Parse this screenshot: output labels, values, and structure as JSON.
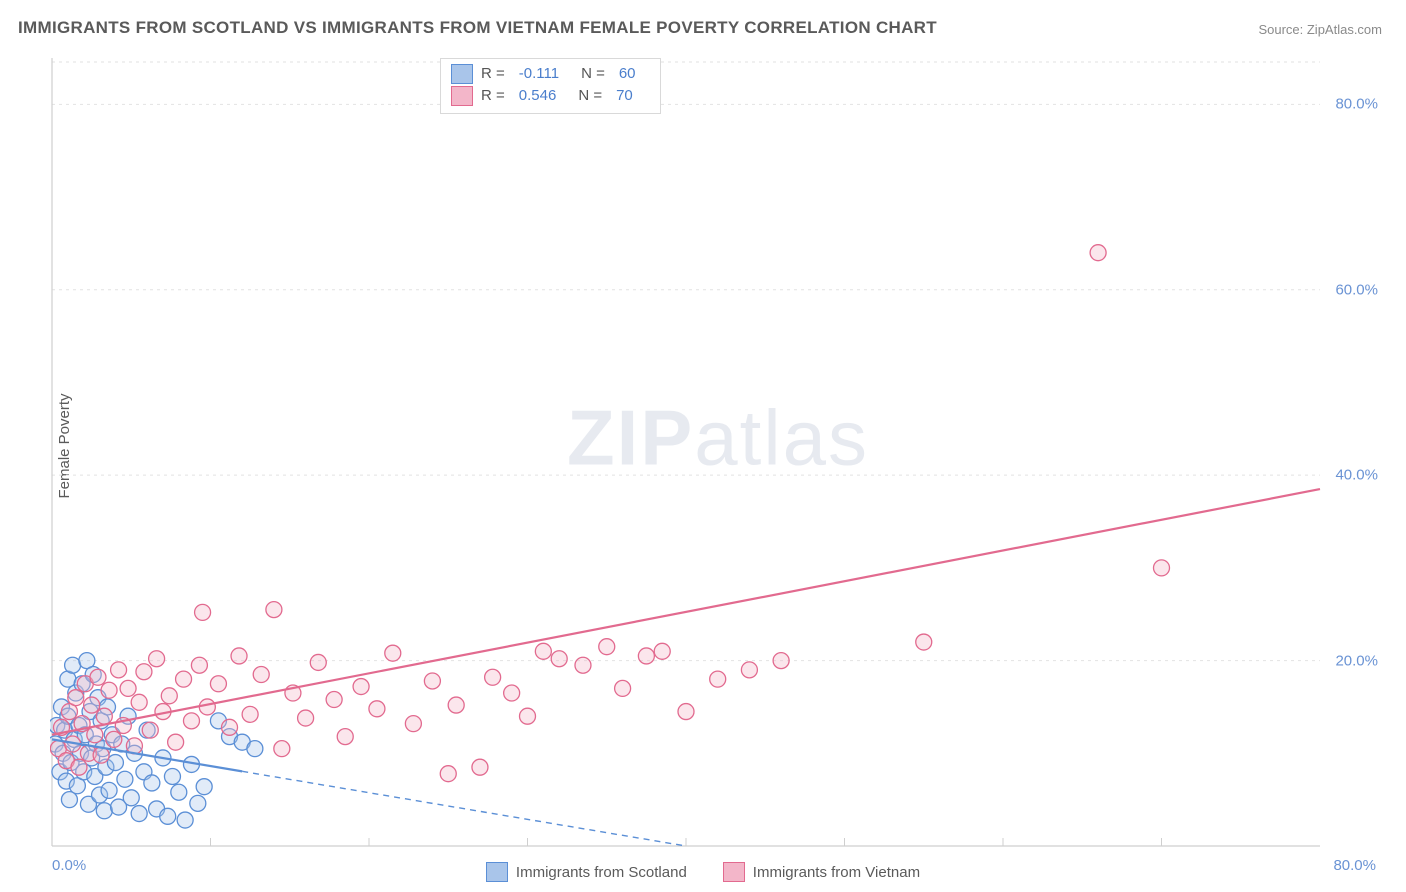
{
  "title": "IMMIGRANTS FROM SCOTLAND VS IMMIGRANTS FROM VIETNAM FEMALE POVERTY CORRELATION CHART",
  "source_label": "Source: ",
  "source_name": "ZipAtlas.com",
  "ylabel": "Female Poverty",
  "watermark_bold": "ZIP",
  "watermark_rest": "atlas",
  "chart": {
    "type": "scatter-with-regression",
    "background_color": "#ffffff",
    "grid_color": "#e2e2e2",
    "grid_dash": "3,4",
    "axis_color": "#cfcfcf",
    "xlim": [
      0,
      80
    ],
    "ylim": [
      0,
      85
    ],
    "xtick_labels": [
      "0.0%",
      "80.0%"
    ],
    "yticks": [
      20,
      40,
      60,
      80
    ],
    "ytick_labels": [
      "20.0%",
      "40.0%",
      "60.0%",
      "80.0%"
    ],
    "xtick_positions": [
      10,
      20,
      30,
      40,
      50,
      60,
      70
    ],
    "tick_color": "#cfcfcf",
    "marker_radius": 8,
    "marker_stroke_width": 1.3,
    "marker_fill_opacity": 0.35,
    "line_width": 2.2,
    "series": [
      {
        "name": "Immigrants from Scotland",
        "color_stroke": "#5b8fd6",
        "color_fill": "#a9c5ea",
        "R": "-0.111",
        "N": "60",
        "regression": {
          "x1": 0,
          "y1": 11.5,
          "x2": 40,
          "y2": 0,
          "solid_until_x": 12,
          "dash": "6,5"
        },
        "points": [
          [
            0.2,
            11
          ],
          [
            0.3,
            13
          ],
          [
            0.5,
            8
          ],
          [
            0.6,
            15
          ],
          [
            0.7,
            10
          ],
          [
            0.8,
            12.5
          ],
          [
            0.9,
            7
          ],
          [
            1.0,
            14
          ],
          [
            1.0,
            18
          ],
          [
            1.1,
            5
          ],
          [
            1.2,
            9
          ],
          [
            1.3,
            19.5
          ],
          [
            1.4,
            11.5
          ],
          [
            1.5,
            16.5
          ],
          [
            1.6,
            6.5
          ],
          [
            1.7,
            13
          ],
          [
            1.8,
            10
          ],
          [
            1.9,
            17.5
          ],
          [
            2.0,
            8
          ],
          [
            2.1,
            12
          ],
          [
            2.2,
            20
          ],
          [
            2.3,
            4.5
          ],
          [
            2.4,
            14.5
          ],
          [
            2.5,
            9.5
          ],
          [
            2.6,
            18.5
          ],
          [
            2.7,
            7.5
          ],
          [
            2.8,
            11
          ],
          [
            2.9,
            16
          ],
          [
            3.0,
            5.5
          ],
          [
            3.1,
            13.5
          ],
          [
            3.2,
            10.5
          ],
          [
            3.3,
            3.8
          ],
          [
            3.4,
            8.5
          ],
          [
            3.5,
            15
          ],
          [
            3.6,
            6
          ],
          [
            3.8,
            12
          ],
          [
            4.0,
            9
          ],
          [
            4.2,
            4.2
          ],
          [
            4.4,
            11
          ],
          [
            4.6,
            7.2
          ],
          [
            4.8,
            14
          ],
          [
            5.0,
            5.2
          ],
          [
            5.2,
            10
          ],
          [
            5.5,
            3.5
          ],
          [
            5.8,
            8
          ],
          [
            6.0,
            12.5
          ],
          [
            6.3,
            6.8
          ],
          [
            6.6,
            4.0
          ],
          [
            7.0,
            9.5
          ],
          [
            7.3,
            3.2
          ],
          [
            7.6,
            7.5
          ],
          [
            8.0,
            5.8
          ],
          [
            8.4,
            2.8
          ],
          [
            8.8,
            8.8
          ],
          [
            9.2,
            4.6
          ],
          [
            9.6,
            6.4
          ],
          [
            10.5,
            13.5
          ],
          [
            11.2,
            11.8
          ],
          [
            12.0,
            11.2
          ],
          [
            12.8,
            10.5
          ]
        ]
      },
      {
        "name": "Immigrants from Vietnam",
        "color_stroke": "#e26a8f",
        "color_fill": "#f3b6c9",
        "R": "0.546",
        "N": "70",
        "regression": {
          "x1": 0,
          "y1": 12,
          "x2": 80,
          "y2": 38.5,
          "solid_until_x": 80,
          "dash": null
        },
        "points": [
          [
            0.4,
            10.5
          ],
          [
            0.6,
            12.8
          ],
          [
            0.9,
            9.2
          ],
          [
            1.1,
            14.5
          ],
          [
            1.3,
            11
          ],
          [
            1.5,
            16
          ],
          [
            1.7,
            8.5
          ],
          [
            1.9,
            13.2
          ],
          [
            2.1,
            17.5
          ],
          [
            2.3,
            10
          ],
          [
            2.5,
            15.2
          ],
          [
            2.7,
            12
          ],
          [
            2.9,
            18.2
          ],
          [
            3.1,
            9.8
          ],
          [
            3.3,
            14
          ],
          [
            3.6,
            16.8
          ],
          [
            3.9,
            11.5
          ],
          [
            4.2,
            19
          ],
          [
            4.5,
            13
          ],
          [
            4.8,
            17
          ],
          [
            5.2,
            10.8
          ],
          [
            5.5,
            15.5
          ],
          [
            5.8,
            18.8
          ],
          [
            6.2,
            12.5
          ],
          [
            6.6,
            20.2
          ],
          [
            7.0,
            14.5
          ],
          [
            7.4,
            16.2
          ],
          [
            7.8,
            11.2
          ],
          [
            8.3,
            18
          ],
          [
            8.8,
            13.5
          ],
          [
            9.3,
            19.5
          ],
          [
            9.5,
            25.2
          ],
          [
            9.8,
            15
          ],
          [
            10.5,
            17.5
          ],
          [
            11.2,
            12.8
          ],
          [
            11.8,
            20.5
          ],
          [
            12.5,
            14.2
          ],
          [
            13.2,
            18.5
          ],
          [
            14.0,
            25.5
          ],
          [
            14.5,
            10.5
          ],
          [
            15.2,
            16.5
          ],
          [
            16.0,
            13.8
          ],
          [
            16.8,
            19.8
          ],
          [
            17.8,
            15.8
          ],
          [
            18.5,
            11.8
          ],
          [
            19.5,
            17.2
          ],
          [
            20.5,
            14.8
          ],
          [
            21.5,
            20.8
          ],
          [
            22.8,
            13.2
          ],
          [
            24.0,
            17.8
          ],
          [
            25.0,
            7.8
          ],
          [
            25.5,
            15.2
          ],
          [
            27.0,
            8.5
          ],
          [
            27.8,
            18.2
          ],
          [
            29.0,
            16.5
          ],
          [
            30.0,
            14
          ],
          [
            31.0,
            21
          ],
          [
            32.0,
            20.2
          ],
          [
            33.5,
            19.5
          ],
          [
            35.0,
            21.5
          ],
          [
            36.0,
            17
          ],
          [
            37.5,
            20.5
          ],
          [
            38.5,
            21
          ],
          [
            40.0,
            14.5
          ],
          [
            42.0,
            18
          ],
          [
            44.0,
            19
          ],
          [
            46.0,
            20
          ],
          [
            55.0,
            22
          ],
          [
            66.0,
            64
          ],
          [
            70.0,
            30
          ]
        ]
      }
    ]
  },
  "legend_top": {
    "R_label": "R  = ",
    "N_label": "N  = "
  },
  "legend_bottom": {
    "items": [
      "Immigrants from Scotland",
      "Immigrants from Vietnam"
    ]
  }
}
